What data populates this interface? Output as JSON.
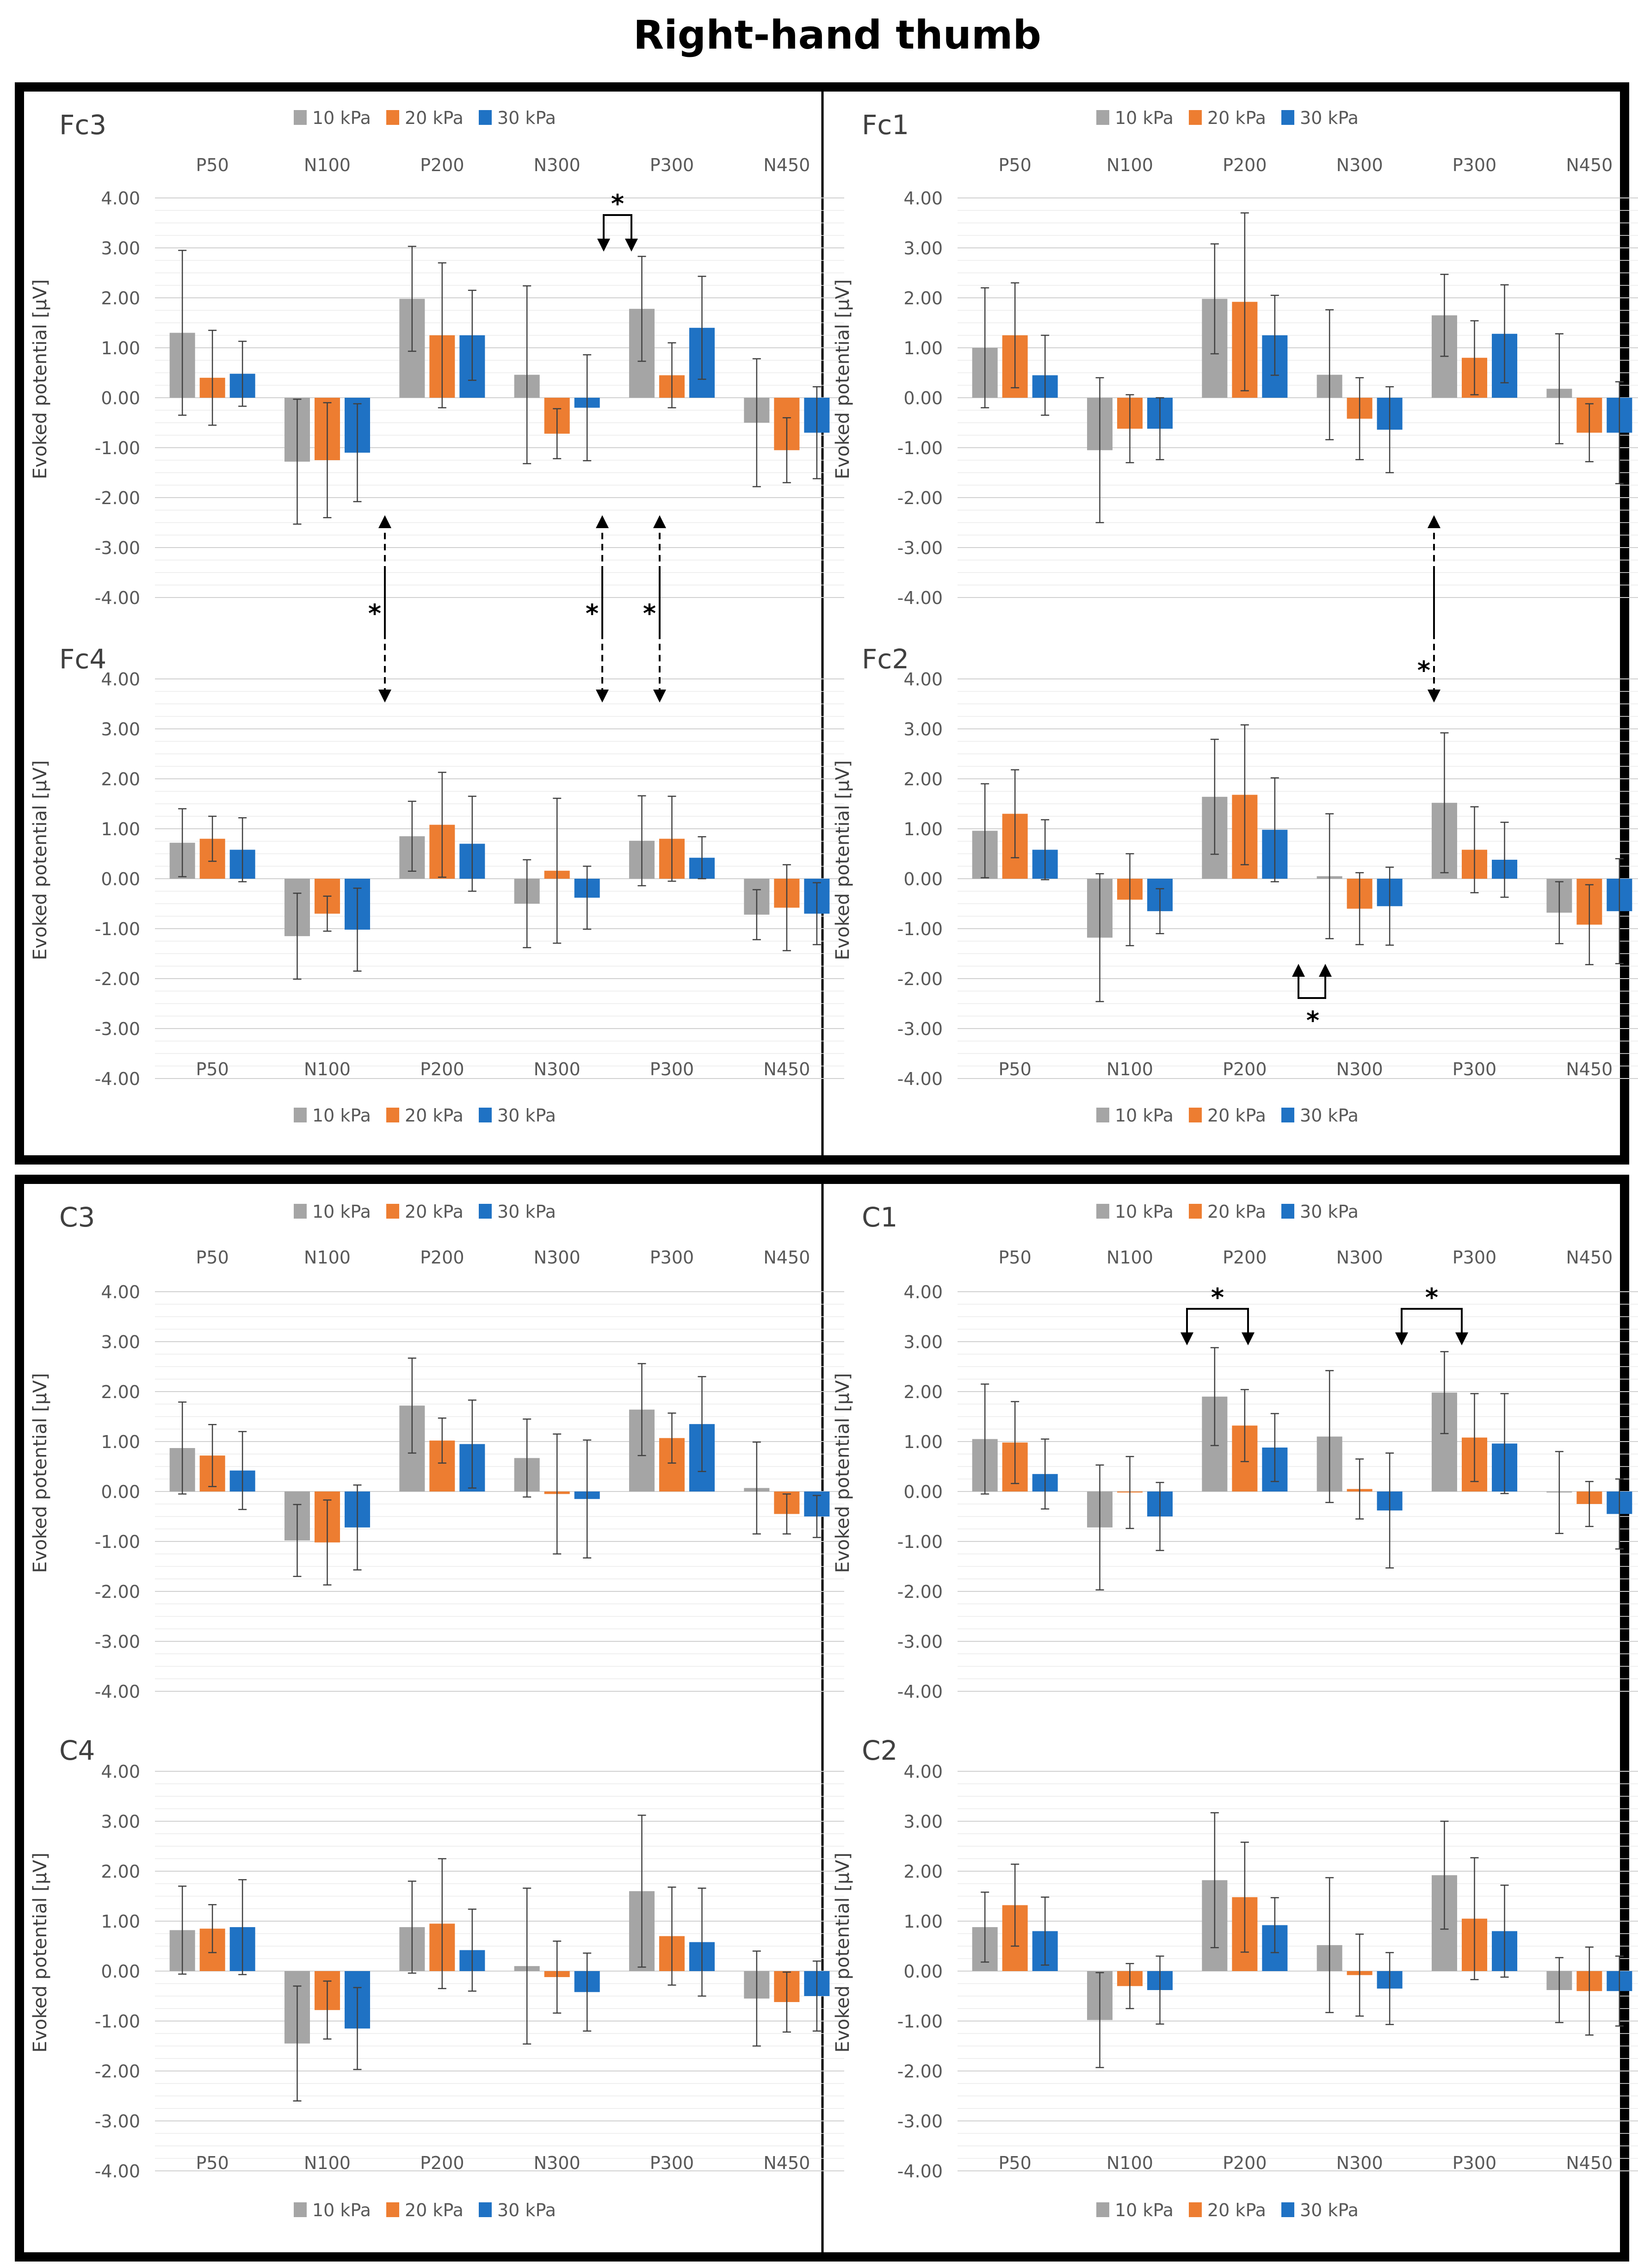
{
  "title": "Right-hand thumb",
  "legend": [
    "10 kPa",
    "20 kPa",
    "30 kPa"
  ],
  "colors": {
    "s10": "#A5A5A5",
    "s20": "#ED7D31",
    "s30": "#1F72C4"
  },
  "ylabel": "Evoked potential [μV]",
  "categories": [
    "P50",
    "N100",
    "P200",
    "N300",
    "P300",
    "N450"
  ],
  "ylim": [
    -4,
    4
  ],
  "yticks": [
    "4.00",
    "3.00",
    "2.00",
    "1.00",
    "0.00",
    "-1.00",
    "-2.00",
    "-3.00",
    "-4.00"
  ],
  "sig_label": "*",
  "chart_data": [
    {
      "type": "bar",
      "name": "Fc3",
      "series": [
        {
          "name": "10 kPa",
          "values": [
            1.3,
            -1.28,
            1.98,
            0.46,
            1.78,
            -0.5
          ],
          "err": [
            1.65,
            1.25,
            1.05,
            1.78,
            1.05,
            1.28
          ]
        },
        {
          "name": "20 kPa",
          "values": [
            0.4,
            -1.25,
            1.25,
            -0.72,
            0.45,
            -1.05
          ],
          "err": [
            0.95,
            1.15,
            1.45,
            0.5,
            0.65,
            0.65
          ]
        },
        {
          "name": "30 kPa",
          "values": [
            0.48,
            -1.1,
            1.25,
            -0.2,
            1.4,
            -0.7
          ],
          "err": [
            0.65,
            0.98,
            0.9,
            1.06,
            1.03,
            0.92
          ]
        }
      ]
    },
    {
      "type": "bar",
      "name": "Fc1",
      "series": [
        {
          "name": "10 kPa",
          "values": [
            1.0,
            -1.05,
            1.98,
            0.46,
            1.65,
            0.18
          ],
          "err": [
            1.2,
            1.45,
            1.1,
            1.3,
            0.82,
            1.1
          ]
        },
        {
          "name": "20 kPa",
          "values": [
            1.25,
            -0.62,
            1.92,
            -0.42,
            0.8,
            -0.7
          ],
          "err": [
            1.05,
            0.68,
            1.78,
            0.82,
            0.74,
            0.58
          ]
        },
        {
          "name": "30 kPa",
          "values": [
            0.45,
            -0.62,
            1.25,
            -0.64,
            1.28,
            -0.7
          ],
          "err": [
            0.8,
            0.62,
            0.8,
            0.86,
            0.98,
            1.02
          ]
        }
      ]
    },
    {
      "type": "bar",
      "name": "Fc4",
      "series": [
        {
          "name": "10 kPa",
          "values": [
            0.72,
            -1.15,
            0.85,
            -0.5,
            0.76,
            -0.72
          ],
          "err": [
            0.68,
            0.86,
            0.7,
            0.88,
            0.9,
            0.5
          ]
        },
        {
          "name": "20 kPa",
          "values": [
            0.8,
            -0.7,
            1.08,
            0.16,
            0.8,
            -0.58
          ],
          "err": [
            0.45,
            0.35,
            1.05,
            1.45,
            0.85,
            0.86
          ]
        },
        {
          "name": "30 kPa",
          "values": [
            0.58,
            -1.02,
            0.7,
            -0.38,
            0.42,
            -0.7
          ],
          "err": [
            0.64,
            0.83,
            0.95,
            0.63,
            0.42,
            0.62
          ]
        }
      ]
    },
    {
      "type": "bar",
      "name": "Fc2",
      "series": [
        {
          "name": "10 kPa",
          "values": [
            0.96,
            -1.18,
            1.64,
            0.05,
            1.52,
            -0.68
          ],
          "err": [
            0.94,
            1.28,
            1.15,
            1.25,
            1.4,
            0.62
          ]
        },
        {
          "name": "20 kPa",
          "values": [
            1.3,
            -0.42,
            1.68,
            -0.6,
            0.58,
            -0.92
          ],
          "err": [
            0.88,
            0.92,
            1.4,
            0.72,
            0.86,
            0.8
          ]
        },
        {
          "name": "30 kPa",
          "values": [
            0.58,
            -0.65,
            0.98,
            -0.55,
            0.38,
            -0.65
          ],
          "err": [
            0.6,
            0.45,
            1.04,
            0.78,
            0.75,
            1.05
          ]
        }
      ]
    },
    {
      "type": "bar",
      "name": "C3",
      "series": [
        {
          "name": "10 kPa",
          "values": [
            0.87,
            -0.98,
            1.72,
            0.67,
            1.64,
            0.07
          ],
          "err": [
            0.92,
            0.72,
            0.95,
            0.78,
            0.92,
            0.92
          ]
        },
        {
          "name": "20 kPa",
          "values": [
            0.72,
            -1.02,
            1.02,
            -0.05,
            1.07,
            -0.45
          ],
          "err": [
            0.62,
            0.85,
            0.45,
            1.2,
            0.5,
            0.4
          ]
        },
        {
          "name": "30 kPa",
          "values": [
            0.42,
            -0.72,
            0.95,
            -0.15,
            1.35,
            -0.5
          ],
          "err": [
            0.78,
            0.85,
            0.88,
            1.18,
            0.95,
            0.42
          ]
        }
      ]
    },
    {
      "type": "bar",
      "name": "C1",
      "series": [
        {
          "name": "10 kPa",
          "values": [
            1.05,
            -0.72,
            1.9,
            1.1,
            1.98,
            -0.02
          ],
          "err": [
            1.1,
            1.25,
            0.98,
            1.32,
            0.82,
            0.82
          ]
        },
        {
          "name": "20 kPa",
          "values": [
            0.98,
            -0.02,
            1.32,
            0.05,
            1.08,
            -0.25
          ],
          "err": [
            0.82,
            0.72,
            0.72,
            0.6,
            0.88,
            0.45
          ]
        },
        {
          "name": "30 kPa",
          "values": [
            0.35,
            -0.5,
            0.88,
            -0.38,
            0.96,
            -0.45
          ],
          "err": [
            0.7,
            0.68,
            0.68,
            1.15,
            1.0,
            0.7
          ]
        }
      ]
    },
    {
      "type": "bar",
      "name": "C4",
      "series": [
        {
          "name": "10 kPa",
          "values": [
            0.82,
            -1.45,
            0.88,
            0.1,
            1.6,
            -0.55
          ],
          "err": [
            0.88,
            1.15,
            0.92,
            1.56,
            1.52,
            0.95
          ]
        },
        {
          "name": "20 kPa",
          "values": [
            0.85,
            -0.78,
            0.95,
            -0.12,
            0.7,
            -0.62
          ],
          "err": [
            0.48,
            0.58,
            1.3,
            0.72,
            0.98,
            0.6
          ]
        },
        {
          "name": "30 kPa",
          "values": [
            0.88,
            -1.15,
            0.42,
            -0.42,
            0.58,
            -0.5
          ],
          "err": [
            0.95,
            0.82,
            0.82,
            0.78,
            1.08,
            0.7
          ]
        }
      ]
    },
    {
      "type": "bar",
      "name": "C2",
      "series": [
        {
          "name": "10 kPa",
          "values": [
            0.88,
            -0.98,
            1.82,
            0.52,
            1.92,
            -0.38
          ],
          "err": [
            0.7,
            0.95,
            1.35,
            1.35,
            1.08,
            0.65
          ]
        },
        {
          "name": "20 kPa",
          "values": [
            1.32,
            -0.3,
            1.48,
            -0.08,
            1.05,
            -0.4
          ],
          "err": [
            0.82,
            0.45,
            1.1,
            0.82,
            1.22,
            0.88
          ]
        },
        {
          "name": "30 kPa",
          "values": [
            0.8,
            -0.38,
            0.92,
            -0.35,
            0.8,
            -0.4
          ],
          "err": [
            0.68,
            0.68,
            0.55,
            0.72,
            0.92,
            0.7
          ]
        }
      ]
    }
  ]
}
